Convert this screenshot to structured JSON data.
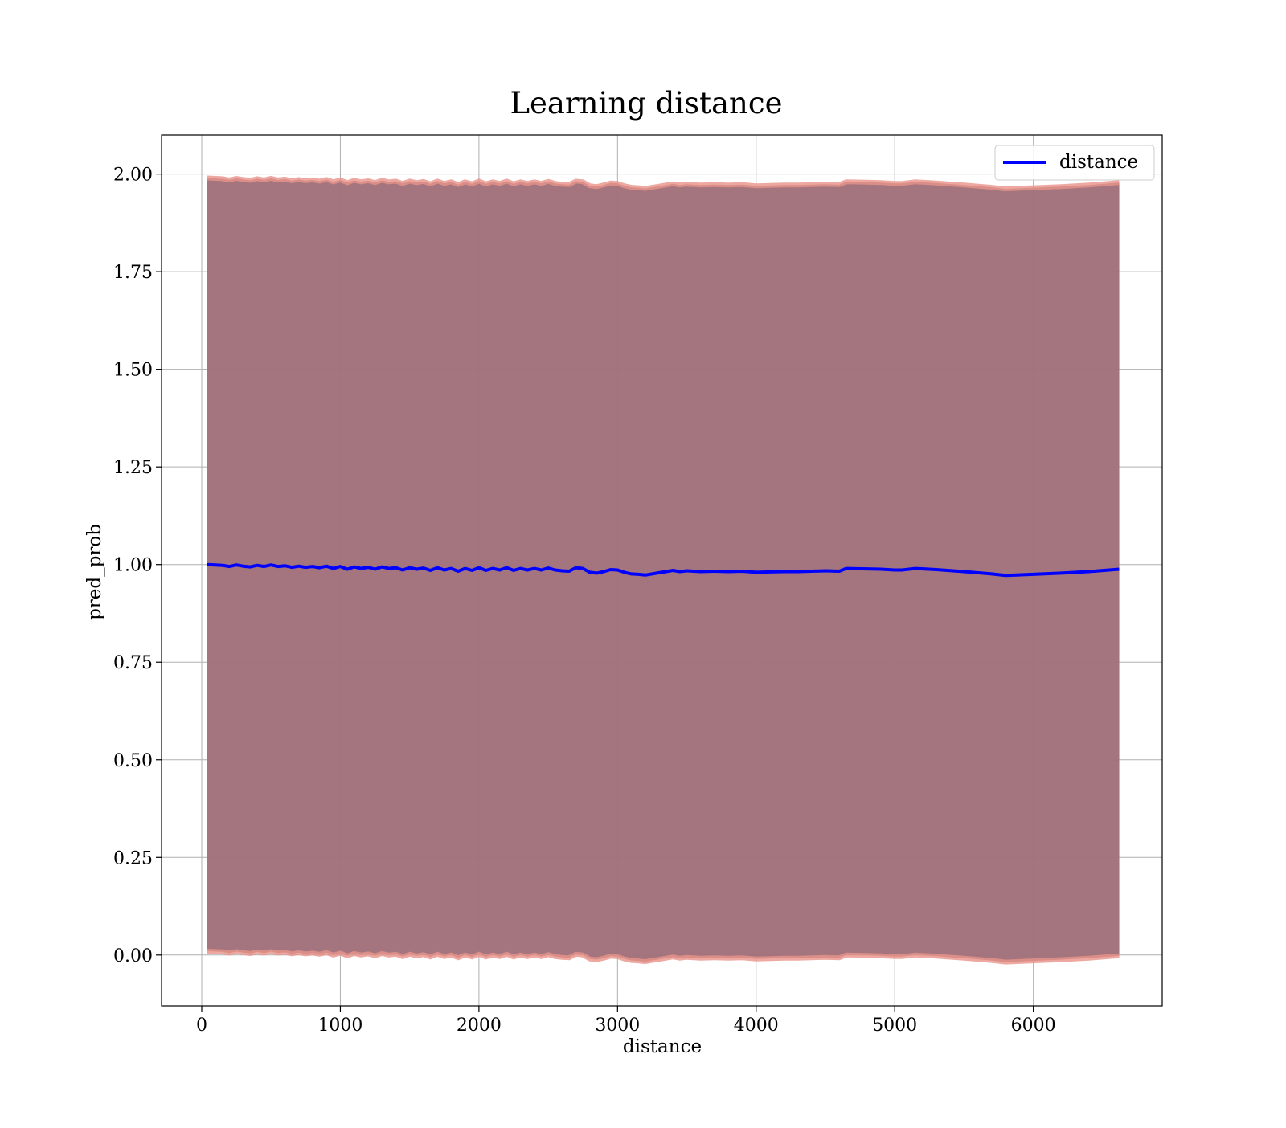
{
  "chart_data": {
    "type": "line",
    "title": "Learning distance",
    "xlabel": "distance",
    "ylabel": "pred_prob",
    "xlim": [
      -290,
      6930
    ],
    "ylim": [
      -0.13,
      2.1
    ],
    "xticks": [
      "0",
      "1000",
      "2000",
      "3000",
      "4000",
      "5000",
      "6000"
    ],
    "yticks": [
      "0.00",
      "0.25",
      "0.50",
      "0.75",
      "1.00",
      "1.25",
      "1.50",
      "1.75",
      "2.00"
    ],
    "grid": true,
    "legend": {
      "position": "top-right",
      "entries": [
        "distance"
      ]
    },
    "colors": {
      "line": "#0000ff",
      "band_fill": "#a1717a",
      "band_edge": "#e8948a",
      "grid": "#b0b0b0"
    },
    "series": [
      {
        "name": "distance",
        "x": [
          40,
          150,
          200,
          250,
          300,
          350,
          400,
          450,
          500,
          550,
          600,
          650,
          700,
          750,
          800,
          850,
          900,
          950,
          1000,
          1050,
          1100,
          1150,
          1200,
          1250,
          1300,
          1350,
          1400,
          1450,
          1500,
          1550,
          1600,
          1650,
          1700,
          1750,
          1800,
          1850,
          1900,
          1950,
          2000,
          2050,
          2100,
          2150,
          2200,
          2250,
          2300,
          2350,
          2400,
          2450,
          2500,
          2550,
          2600,
          2650,
          2700,
          2750,
          2800,
          2850,
          2900,
          2950,
          3000,
          3050,
          3100,
          3150,
          3200,
          3250,
          3300,
          3350,
          3400,
          3450,
          3500,
          3600,
          3700,
          3800,
          3900,
          4000,
          4100,
          4200,
          4300,
          4400,
          4500,
          4600,
          4650,
          4800,
          4900,
          5000,
          5050,
          5150,
          5300,
          5500,
          5700,
          5800,
          6000,
          6200,
          6400,
          6620
        ],
        "y": [
          1.0,
          0.998,
          0.995,
          0.999,
          0.996,
          0.994,
          0.998,
          0.995,
          0.999,
          0.995,
          0.997,
          0.993,
          0.996,
          0.993,
          0.995,
          0.992,
          0.996,
          0.99,
          0.995,
          0.988,
          0.994,
          0.99,
          0.993,
          0.988,
          0.994,
          0.99,
          0.992,
          0.986,
          0.992,
          0.988,
          0.991,
          0.985,
          0.992,
          0.986,
          0.99,
          0.983,
          0.99,
          0.985,
          0.992,
          0.985,
          0.99,
          0.986,
          0.992,
          0.985,
          0.99,
          0.986,
          0.99,
          0.986,
          0.991,
          0.986,
          0.984,
          0.983,
          0.992,
          0.99,
          0.98,
          0.978,
          0.982,
          0.987,
          0.986,
          0.98,
          0.976,
          0.975,
          0.973,
          0.976,
          0.979,
          0.982,
          0.985,
          0.982,
          0.984,
          0.982,
          0.983,
          0.982,
          0.983,
          0.98,
          0.981,
          0.982,
          0.982,
          0.983,
          0.984,
          0.983,
          0.99,
          0.989,
          0.988,
          0.986,
          0.986,
          0.99,
          0.987,
          0.982,
          0.976,
          0.972,
          0.975,
          0.978,
          0.982,
          0.988
        ]
      }
    ],
    "band": {
      "upper_offset": 0.99,
      "lower_offset": 0.99
    }
  }
}
